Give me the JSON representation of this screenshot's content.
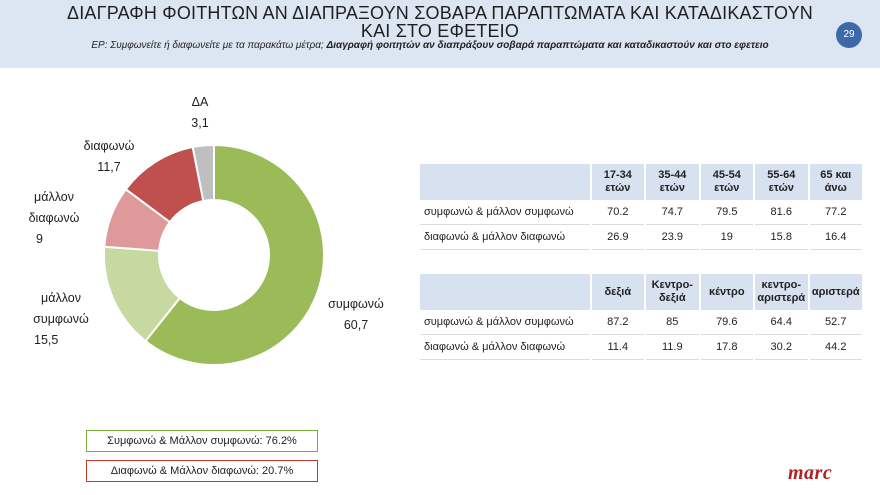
{
  "header": {
    "title": "ΔΙΑΓΡΑΦΗ ΦΟΙΤΗΤΩΝ ΑΝ ΔΙΑΠΡΑΞΟΥΝ ΣΟΒΑΡΑ ΠΑΡΑΠΤΩΜΑΤΑ ΚΑΙ ΚΑΤΑΔΙΚΑΣΤΟΥΝ ΚΑΙ ΣΤΟ ΕΦΕΤΕΙΟ",
    "subtitle_prefix": "ΕΡ: Συμφωνείτε ή διαφωνείτε με τα παρακάτω μέτρα;",
    "subtitle_bold": "Διαγραφή φοιτητών αν διαπράξουν σοβαρά παραπτώματα και καταδικαστούν και στο εφετειο",
    "page_number": "29"
  },
  "chart_data": [
    {
      "type": "pie",
      "donut": true,
      "slices": [
        {
          "label": "συμφωνώ",
          "value": 60.7,
          "display": "60,7",
          "color": "#9bbb59"
        },
        {
          "label": "μάλλον συμφωνώ",
          "value": 15.5,
          "display": "15,5",
          "color": "#c5d9a0"
        },
        {
          "label": "μάλλον διαφωνώ",
          "value": 9,
          "display": "9",
          "color": "#de9a9a"
        },
        {
          "label": "διαφωνώ",
          "value": 11.7,
          "display": "11,7",
          "color": "#c0504d"
        },
        {
          "label": "ΔΑ",
          "value": 3.1,
          "display": "3,1",
          "color": "#bfbfbf"
        }
      ]
    },
    {
      "type": "table",
      "columns": [
        "17-34 ετών",
        "35-44 ετών",
        "45-54 ετών",
        "55-64 ετών",
        "65 και άνω"
      ],
      "rows": [
        {
          "label": "συμφωνώ & μάλλον συμφωνώ",
          "values": [
            "70.2",
            "74.7",
            "79.5",
            "81.6",
            "77.2"
          ]
        },
        {
          "label": "διαφωνώ & μάλλον διαφωνώ",
          "values": [
            "26.9",
            "23.9",
            "19",
            "15.8",
            "16.4"
          ]
        }
      ]
    },
    {
      "type": "table",
      "columns": [
        "δεξιά",
        "Κεντρο-δεξιά",
        "κέντρο",
        "κεντρο-αριστερά",
        "αριστερά"
      ],
      "rows": [
        {
          "label": "συμφωνώ & μάλλον συμφωνώ",
          "values": [
            "87.2",
            "85",
            "79.6",
            "64.4",
            "52.7"
          ]
        },
        {
          "label": "διαφωνώ & μάλλον διαφωνώ",
          "values": [
            "11.4",
            "11.9",
            "17.8",
            "30.2",
            "44.2"
          ]
        }
      ]
    }
  ],
  "summary": {
    "agree": "Συμφωνώ & Μάλλον συμφωνώ: 76.2%",
    "disagree": "Διαφωνώ & Μάλλον διαφωνώ: 20.7%"
  },
  "logo_text": "marc"
}
